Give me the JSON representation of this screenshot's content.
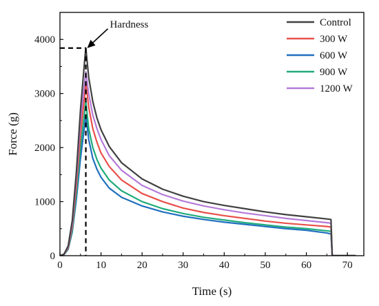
{
  "chart_data": {
    "type": "line",
    "xlabel": "Time (s)",
    "ylabel": "Force (g)",
    "xlim": [
      0,
      74
    ],
    "ylim": [
      0,
      4500
    ],
    "xticks": [
      0,
      10,
      20,
      30,
      40,
      50,
      60,
      70
    ],
    "yticks": [
      0,
      1000,
      2000,
      3000,
      4000
    ],
    "grid": false,
    "legend_position": "top-right",
    "annotation": {
      "text": "Hardness",
      "points_to": {
        "x": 6.3,
        "y": 3840
      },
      "dashed_guides": true
    },
    "series": [
      {
        "name": "Control",
        "color": "#404040",
        "x": [
          0,
          1,
          2,
          3,
          4,
          5,
          6,
          6.3,
          7,
          8,
          9,
          10,
          12,
          15,
          20,
          25,
          30,
          35,
          40,
          45,
          50,
          55,
          60,
          65,
          66,
          66.3,
          67,
          70,
          72
        ],
        "y": [
          0,
          30,
          180,
          650,
          1550,
          2700,
          3600,
          3840,
          3300,
          2850,
          2550,
          2330,
          2020,
          1720,
          1420,
          1230,
          1100,
          1000,
          930,
          870,
          810,
          760,
          720,
          680,
          670,
          0,
          0,
          0,
          0
        ]
      },
      {
        "name": "300 W",
        "color": "#e8504a",
        "x": [
          0,
          1,
          2,
          3,
          4,
          5,
          6,
          6.3,
          7,
          8,
          9,
          10,
          12,
          15,
          20,
          25,
          30,
          35,
          40,
          45,
          50,
          55,
          60,
          65,
          66,
          66.3,
          67,
          70,
          72
        ],
        "y": [
          0,
          25,
          150,
          540,
          1300,
          2250,
          2950,
          3200,
          2750,
          2350,
          2100,
          1900,
          1650,
          1400,
          1150,
          1000,
          880,
          800,
          740,
          690,
          640,
          600,
          570,
          540,
          530,
          0,
          0,
          0,
          0
        ]
      },
      {
        "name": "600 W",
        "color": "#1f6fbf",
        "x": [
          0,
          1,
          2,
          3,
          4,
          5,
          6,
          6.3,
          7,
          8,
          9,
          10,
          12,
          15,
          20,
          25,
          30,
          35,
          40,
          45,
          50,
          55,
          60,
          65,
          66,
          66.3,
          67,
          70,
          72
        ],
        "y": [
          0,
          20,
          120,
          440,
          1050,
          1800,
          2400,
          2600,
          2150,
          1800,
          1600,
          1450,
          1250,
          1080,
          920,
          810,
          730,
          670,
          620,
          580,
          540,
          500,
          470,
          420,
          400,
          0,
          0,
          0,
          0
        ]
      },
      {
        "name": "900 W",
        "color": "#1faa7a",
        "x": [
          0,
          1,
          2,
          3,
          4,
          5,
          6,
          6.3,
          7,
          8,
          9,
          10,
          12,
          15,
          20,
          25,
          30,
          35,
          40,
          45,
          50,
          55,
          60,
          65,
          66,
          66.3,
          67,
          70,
          72
        ],
        "y": [
          0,
          22,
          135,
          480,
          1150,
          2000,
          2650,
          2850,
          2350,
          2000,
          1780,
          1620,
          1400,
          1200,
          1000,
          870,
          780,
          710,
          660,
          610,
          570,
          530,
          500,
          460,
          450,
          0,
          0,
          0,
          0
        ]
      },
      {
        "name": "1200 W",
        "color": "#b57ad8",
        "x": [
          0,
          1,
          2,
          3,
          4,
          5,
          6,
          6.3,
          7,
          8,
          9,
          10,
          12,
          15,
          20,
          25,
          30,
          35,
          40,
          45,
          50,
          55,
          60,
          65,
          66,
          66.3,
          67,
          70,
          72
        ],
        "y": [
          0,
          28,
          170,
          600,
          1450,
          2500,
          3200,
          3400,
          3000,
          2600,
          2350,
          2150,
          1850,
          1580,
          1300,
          1130,
          1010,
          920,
          850,
          790,
          740,
          690,
          650,
          610,
          600,
          0,
          0,
          0,
          0
        ]
      }
    ]
  }
}
